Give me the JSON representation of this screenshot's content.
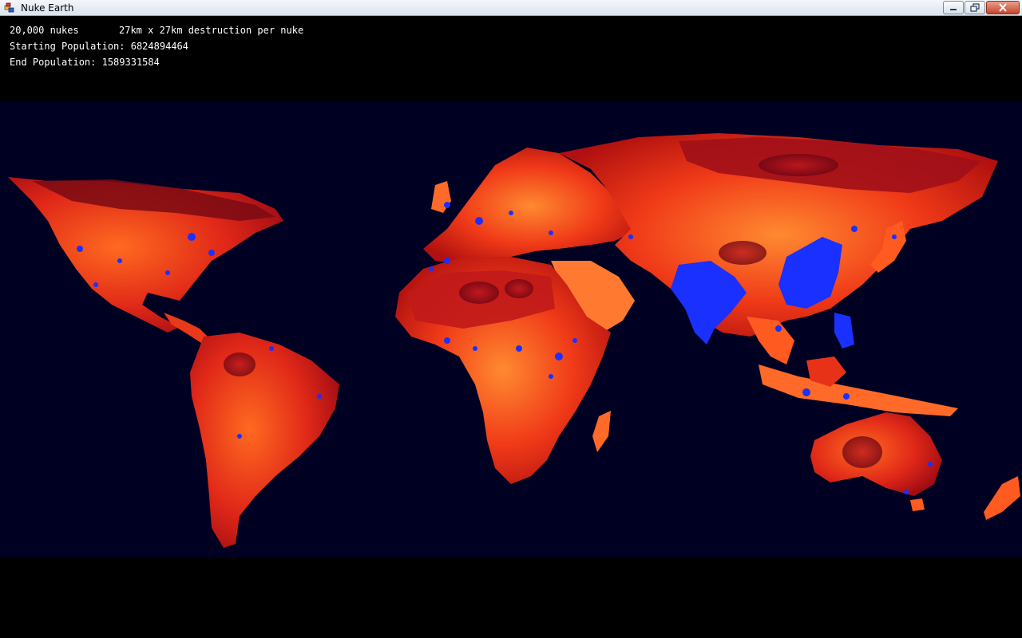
{
  "window": {
    "title": "Nuke Earth",
    "icon": "app-icon",
    "controls": [
      "minimize-icon",
      "restore-icon",
      "close-icon"
    ]
  },
  "stats": {
    "nukes": "20,000 nukes",
    "destruction": "27km x 27km destruction per nuke",
    "starting_population": "Starting Population: 6824894464",
    "end_population": "End Population: 1589331584"
  },
  "map": {
    "legend_colors": {
      "ocean": "#000022",
      "unpopulated": "#5a0010",
      "low_density": "#d01818",
      "medium_density": "#ff5a20",
      "high_density": "#ff9a3a",
      "destroyed": "#1a30ff"
    }
  }
}
